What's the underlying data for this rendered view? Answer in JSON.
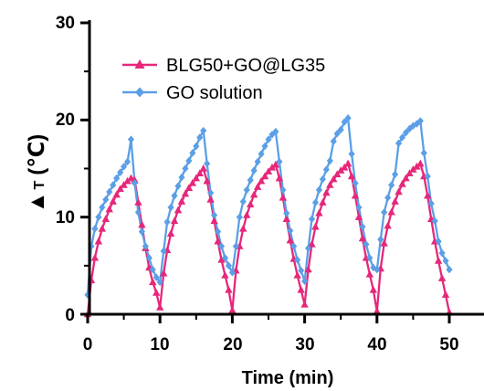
{
  "chart_data": {
    "type": "line",
    "xlabel": "Time (min)",
    "ylabel_symbol": "▲",
    "ylabel_letter": "T",
    "ylabel_unit": "(℃)",
    "xlim": [
      0,
      50
    ],
    "ylim": [
      0,
      30
    ],
    "x_ticks": [
      "0",
      "10",
      "20",
      "30",
      "40",
      "50"
    ],
    "y_ticks": [
      "0",
      "10",
      "20",
      "30"
    ],
    "grid": false,
    "legend_position": "top-left",
    "series": [
      {
        "name": "BLG50+GO@LG35",
        "color": "#e6277a",
        "marker": "triangle",
        "points": [
          [
            0,
            0
          ],
          [
            0.5,
            3.5
          ],
          [
            1,
            5.8
          ],
          [
            1.5,
            7.5
          ],
          [
            2,
            8.8
          ],
          [
            2.5,
            9.8
          ],
          [
            3,
            10.8
          ],
          [
            3.5,
            11.6
          ],
          [
            4,
            12.3
          ],
          [
            4.5,
            12.9
          ],
          [
            5,
            13.3
          ],
          [
            5.5,
            13.7
          ],
          [
            6,
            14
          ],
          [
            6.5,
            13.8
          ],
          [
            7,
            11.5
          ],
          [
            7.5,
            9.2
          ],
          [
            8,
            6.8
          ],
          [
            8.5,
            4.8
          ],
          [
            9,
            3.3
          ],
          [
            9.5,
            2.2
          ],
          [
            10,
            0.7
          ],
          [
            10.5,
            4.2
          ],
          [
            11,
            6.6
          ],
          [
            11.5,
            8.3
          ],
          [
            12,
            9.6
          ],
          [
            12.5,
            10.7
          ],
          [
            13,
            11.6
          ],
          [
            13.5,
            12.4
          ],
          [
            14,
            13
          ],
          [
            14.5,
            13.5
          ],
          [
            15,
            14
          ],
          [
            15.5,
            14.5
          ],
          [
            16,
            15
          ],
          [
            16.5,
            13.7
          ],
          [
            17,
            11.8
          ],
          [
            17.5,
            9.6
          ],
          [
            18,
            7.5
          ],
          [
            18.5,
            5.6
          ],
          [
            19,
            4
          ],
          [
            19.5,
            2.5
          ],
          [
            20,
            0.4
          ],
          [
            20.5,
            4.5
          ],
          [
            21,
            7
          ],
          [
            21.5,
            8.8
          ],
          [
            22,
            10.2
          ],
          [
            22.5,
            11.3
          ],
          [
            23,
            12.3
          ],
          [
            23.5,
            13.1
          ],
          [
            24,
            13.7
          ],
          [
            24.5,
            14.2
          ],
          [
            25,
            14.7
          ],
          [
            25.5,
            15.1
          ],
          [
            26,
            15.4
          ],
          [
            26.5,
            14
          ],
          [
            27,
            12
          ],
          [
            27.5,
            9.8
          ],
          [
            28,
            7.6
          ],
          [
            28.5,
            5.7
          ],
          [
            29,
            4
          ],
          [
            29.5,
            2.5
          ],
          [
            30,
            1
          ],
          [
            30.5,
            4.6
          ],
          [
            31,
            7.2
          ],
          [
            31.5,
            9
          ],
          [
            32,
            10.4
          ],
          [
            32.5,
            11.5
          ],
          [
            33,
            12.5
          ],
          [
            33.5,
            13.3
          ],
          [
            34,
            13.9
          ],
          [
            34.5,
            14.4
          ],
          [
            35,
            14.8
          ],
          [
            35.5,
            15.1
          ],
          [
            36,
            15.5
          ],
          [
            36.5,
            14.2
          ],
          [
            37,
            12.2
          ],
          [
            37.5,
            10
          ],
          [
            38,
            7.8
          ],
          [
            38.5,
            5.8
          ],
          [
            39,
            4.1
          ],
          [
            39.5,
            2.5
          ],
          [
            40,
            0.3
          ],
          [
            40.5,
            4.7
          ],
          [
            41,
            7.3
          ],
          [
            41.5,
            9.1
          ],
          [
            42,
            10.5
          ],
          [
            42.5,
            11.6
          ],
          [
            43,
            12.6
          ],
          [
            43.5,
            13.4
          ],
          [
            44,
            14
          ],
          [
            44.5,
            14.5
          ],
          [
            45,
            14.9
          ],
          [
            45.5,
            15.2
          ],
          [
            46,
            15.5
          ],
          [
            46.5,
            14.2
          ],
          [
            47,
            12.2
          ],
          [
            47.5,
            9.8
          ],
          [
            48,
            7.5
          ],
          [
            48.5,
            5.5
          ],
          [
            49,
            3.7
          ],
          [
            49.5,
            2
          ],
          [
            50,
            0.2
          ]
        ]
      },
      {
        "name": "GO solution",
        "color": "#5b9fe6",
        "marker": "diamond",
        "points": [
          [
            0,
            2
          ],
          [
            0.5,
            7
          ],
          [
            1,
            8.8
          ],
          [
            1.5,
            10
          ],
          [
            2,
            11
          ],
          [
            2.5,
            11.8
          ],
          [
            3,
            12.6
          ],
          [
            3.5,
            13.3
          ],
          [
            4,
            14
          ],
          [
            4.5,
            14.6
          ],
          [
            5,
            15.2
          ],
          [
            5.5,
            15.7
          ],
          [
            6,
            18
          ],
          [
            6.5,
            13.5
          ],
          [
            7,
            10.5
          ],
          [
            7.5,
            8.5
          ],
          [
            8,
            7
          ],
          [
            8.5,
            5.8
          ],
          [
            9,
            4.6
          ],
          [
            9.5,
            3.8
          ],
          [
            10,
            3.3
          ],
          [
            10.5,
            6.5
          ],
          [
            11,
            9.5
          ],
          [
            11.5,
            11
          ],
          [
            12,
            12.2
          ],
          [
            12.5,
            13.2
          ],
          [
            13,
            14.1
          ],
          [
            13.5,
            15
          ],
          [
            14,
            15.8
          ],
          [
            14.5,
            16.6
          ],
          [
            15,
            17.3
          ],
          [
            15.5,
            18.2
          ],
          [
            16,
            18.9
          ],
          [
            16.5,
            15.5
          ],
          [
            17,
            12.5
          ],
          [
            17.5,
            10.2
          ],
          [
            18,
            8.5
          ],
          [
            18.5,
            7
          ],
          [
            19,
            5.8
          ],
          [
            19.5,
            5
          ],
          [
            20,
            4.3
          ],
          [
            20.5,
            7
          ],
          [
            21,
            10
          ],
          [
            21.5,
            11.6
          ],
          [
            22,
            12.8
          ],
          [
            22.5,
            13.8
          ],
          [
            23,
            14.8
          ],
          [
            23.5,
            15.7
          ],
          [
            24,
            16.5
          ],
          [
            24.5,
            17.3
          ],
          [
            25,
            18
          ],
          [
            25.5,
            18.5
          ],
          [
            26,
            18.8
          ],
          [
            26.5,
            15.7
          ],
          [
            27,
            12.8
          ],
          [
            27.5,
            10.4
          ],
          [
            28,
            8.6
          ],
          [
            28.5,
            7
          ],
          [
            29,
            5.6
          ],
          [
            29.5,
            4.5
          ],
          [
            30,
            3.4
          ],
          [
            30.5,
            6.8
          ],
          [
            31,
            9.8
          ],
          [
            31.5,
            11.5
          ],
          [
            32,
            12.8
          ],
          [
            32.5,
            13.9
          ],
          [
            33,
            14.9
          ],
          [
            33.5,
            15.8
          ],
          [
            34,
            17.8
          ],
          [
            34.5,
            18.6
          ],
          [
            35,
            19
          ],
          [
            35.5,
            19.8
          ],
          [
            36,
            20.2
          ],
          [
            36.5,
            16.5
          ],
          [
            37,
            13.5
          ],
          [
            37.5,
            11
          ],
          [
            38,
            9
          ],
          [
            38.5,
            7.2
          ],
          [
            39,
            5.8
          ],
          [
            39.5,
            4.8
          ],
          [
            40,
            4.6
          ],
          [
            40.5,
            7.7
          ],
          [
            41,
            10.5
          ],
          [
            41.5,
            12
          ],
          [
            42,
            13.3
          ],
          [
            42.5,
            14.4
          ],
          [
            43,
            17.6
          ],
          [
            43.5,
            18.2
          ],
          [
            44,
            18.7
          ],
          [
            44.5,
            19.1
          ],
          [
            45,
            19.4
          ],
          [
            45.5,
            19.6
          ],
          [
            46,
            19.9
          ],
          [
            46.5,
            16.6
          ],
          [
            47,
            14.2
          ],
          [
            47.5,
            11.4
          ],
          [
            48,
            9.6
          ],
          [
            48.5,
            7.5
          ],
          [
            49,
            6.3
          ],
          [
            49.5,
            5.5
          ],
          [
            50,
            4.6
          ]
        ]
      }
    ]
  }
}
